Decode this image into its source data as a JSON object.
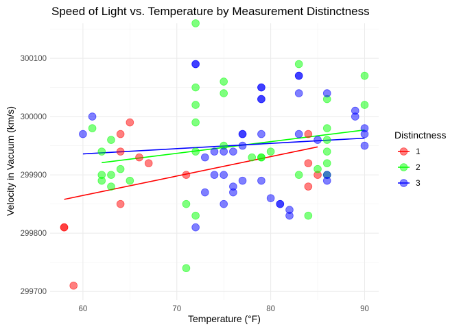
{
  "chart_data": {
    "type": "scatter",
    "title": "Speed of Light vs. Temperature by Measurement Distinctness",
    "xlabel": "Temperature (°F)",
    "ylabel": "Velocity in Vacuum (km/s)",
    "xlim": [
      56.5,
      91.5
    ],
    "ylim": [
      299685,
      300160
    ],
    "x_ticks": [
      60,
      70,
      80,
      90
    ],
    "y_ticks": [
      299700,
      299800,
      299900,
      300000,
      300100
    ],
    "grid": true,
    "legend": {
      "title": "Distinctness",
      "position": "right"
    },
    "series": [
      {
        "name": "1",
        "color": "#ff0000",
        "points": [
          {
            "x": 58,
            "y": 299810
          },
          {
            "x": 58,
            "y": 299810
          },
          {
            "x": 59,
            "y": 299710
          },
          {
            "x": 64,
            "y": 299850
          },
          {
            "x": 64,
            "y": 299940
          },
          {
            "x": 64,
            "y": 299970
          },
          {
            "x": 65,
            "y": 299990
          },
          {
            "x": 66,
            "y": 299930
          },
          {
            "x": 67,
            "y": 299920
          },
          {
            "x": 71,
            "y": 299900
          },
          {
            "x": 84,
            "y": 299970
          },
          {
            "x": 84,
            "y": 299920
          },
          {
            "x": 84,
            "y": 299880
          },
          {
            "x": 85,
            "y": 299900
          }
        ],
        "trend": {
          "x": [
            58,
            85
          ],
          "y": [
            299858,
            299948
          ]
        }
      },
      {
        "name": "2",
        "color": "#00ff00",
        "points": [
          {
            "x": 61,
            "y": 299980
          },
          {
            "x": 62,
            "y": 299940
          },
          {
            "x": 62,
            "y": 299890
          },
          {
            "x": 62,
            "y": 299900
          },
          {
            "x": 63,
            "y": 299960
          },
          {
            "x": 63,
            "y": 299900
          },
          {
            "x": 63,
            "y": 299880
          },
          {
            "x": 64,
            "y": 299910
          },
          {
            "x": 65,
            "y": 299890
          },
          {
            "x": 71,
            "y": 299850
          },
          {
            "x": 71,
            "y": 299740
          },
          {
            "x": 72,
            "y": 300160
          },
          {
            "x": 72,
            "y": 300050
          },
          {
            "x": 72,
            "y": 300020
          },
          {
            "x": 72,
            "y": 299990
          },
          {
            "x": 72,
            "y": 299940
          },
          {
            "x": 72,
            "y": 299830
          },
          {
            "x": 75,
            "y": 300060
          },
          {
            "x": 75,
            "y": 300040
          },
          {
            "x": 75,
            "y": 299950
          },
          {
            "x": 78,
            "y": 299930
          },
          {
            "x": 79,
            "y": 299930
          },
          {
            "x": 79,
            "y": 299930
          },
          {
            "x": 80,
            "y": 299940
          },
          {
            "x": 83,
            "y": 300090
          },
          {
            "x": 83,
            "y": 299900
          },
          {
            "x": 84,
            "y": 299830
          },
          {
            "x": 85,
            "y": 299910
          },
          {
            "x": 86,
            "y": 300030
          },
          {
            "x": 86,
            "y": 299980
          },
          {
            "x": 86,
            "y": 299960
          },
          {
            "x": 86,
            "y": 299940
          },
          {
            "x": 86,
            "y": 299920
          },
          {
            "x": 86,
            "y": 299900
          },
          {
            "x": 90,
            "y": 300070
          },
          {
            "x": 90,
            "y": 300020
          }
        ],
        "trend": {
          "x": [
            62,
            90
          ],
          "y": [
            299921,
            299977
          ]
        }
      },
      {
        "name": "3",
        "color": "#0000ff",
        "points": [
          {
            "x": 60,
            "y": 299970
          },
          {
            "x": 61,
            "y": 300000
          },
          {
            "x": 72,
            "y": 300090
          },
          {
            "x": 72,
            "y": 300090
          },
          {
            "x": 72,
            "y": 299810
          },
          {
            "x": 73,
            "y": 299930
          },
          {
            "x": 73,
            "y": 299870
          },
          {
            "x": 74,
            "y": 299940
          },
          {
            "x": 74,
            "y": 299900
          },
          {
            "x": 75,
            "y": 299940
          },
          {
            "x": 75,
            "y": 299900
          },
          {
            "x": 75,
            "y": 299850
          },
          {
            "x": 76,
            "y": 299940
          },
          {
            "x": 76,
            "y": 299880
          },
          {
            "x": 76,
            "y": 299870
          },
          {
            "x": 77,
            "y": 299970
          },
          {
            "x": 77,
            "y": 299970
          },
          {
            "x": 77,
            "y": 299950
          },
          {
            "x": 77,
            "y": 299890
          },
          {
            "x": 79,
            "y": 300050
          },
          {
            "x": 79,
            "y": 300050
          },
          {
            "x": 79,
            "y": 300030
          },
          {
            "x": 79,
            "y": 300030
          },
          {
            "x": 79,
            "y": 299970
          },
          {
            "x": 79,
            "y": 299890
          },
          {
            "x": 80,
            "y": 299860
          },
          {
            "x": 81,
            "y": 299850
          },
          {
            "x": 81,
            "y": 299850
          },
          {
            "x": 82,
            "y": 299840
          },
          {
            "x": 82,
            "y": 299830
          },
          {
            "x": 83,
            "y": 300070
          },
          {
            "x": 83,
            "y": 300070
          },
          {
            "x": 83,
            "y": 300040
          },
          {
            "x": 83,
            "y": 299970
          },
          {
            "x": 85,
            "y": 299960
          },
          {
            "x": 86,
            "y": 300040
          },
          {
            "x": 86,
            "y": 299900
          },
          {
            "x": 86,
            "y": 299890
          },
          {
            "x": 89,
            "y": 300010
          },
          {
            "x": 89,
            "y": 300000
          },
          {
            "x": 90,
            "y": 299980
          },
          {
            "x": 90,
            "y": 299970
          },
          {
            "x": 90,
            "y": 299950
          }
        ],
        "trend": {
          "x": [
            60,
            90
          ],
          "y": [
            299936,
            299963
          ]
        }
      }
    ]
  }
}
